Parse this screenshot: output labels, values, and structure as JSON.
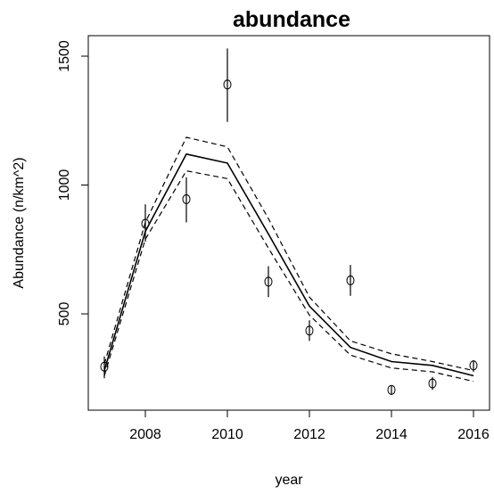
{
  "chart_data": {
    "type": "line",
    "title": "abundance",
    "xlabel": "year",
    "ylabel": "Abundance (n/km^2)",
    "xlim": [
      2007,
      2016
    ],
    "ylim": [
      200,
      1530
    ],
    "x_ticks": [
      2008,
      2010,
      2012,
      2014,
      2016
    ],
    "y_ticks": [
      500,
      1000,
      1500
    ],
    "grid": false,
    "x": [
      2007,
      2008,
      2009,
      2010,
      2011,
      2012,
      2013,
      2014,
      2015,
      2016
    ],
    "series": [
      {
        "role": "fitted",
        "style": "solid",
        "values": [
          280,
          820,
          1120,
          1085,
          810,
          530,
          370,
          315,
          300,
          260
        ]
      },
      {
        "role": "upper-ci",
        "style": "dashed",
        "values": [
          305,
          855,
          1185,
          1148,
          870,
          565,
          395,
          345,
          315,
          280
        ]
      },
      {
        "role": "lower-ci",
        "style": "dashed",
        "values": [
          260,
          790,
          1055,
          1025,
          755,
          495,
          340,
          290,
          275,
          238
        ]
      }
    ],
    "observations": {
      "x": [
        2007,
        2008,
        2009,
        2010,
        2011,
        2012,
        2013,
        2014,
        2015,
        2016
      ],
      "y": [
        295,
        850,
        945,
        1390,
        625,
        435,
        630,
        205,
        230,
        300
      ],
      "lower": [
        250,
        780,
        855,
        1245,
        565,
        395,
        570,
        185,
        205,
        275
      ],
      "upper": [
        335,
        925,
        1030,
        1530,
        685,
        475,
        690,
        220,
        255,
        320
      ]
    }
  }
}
